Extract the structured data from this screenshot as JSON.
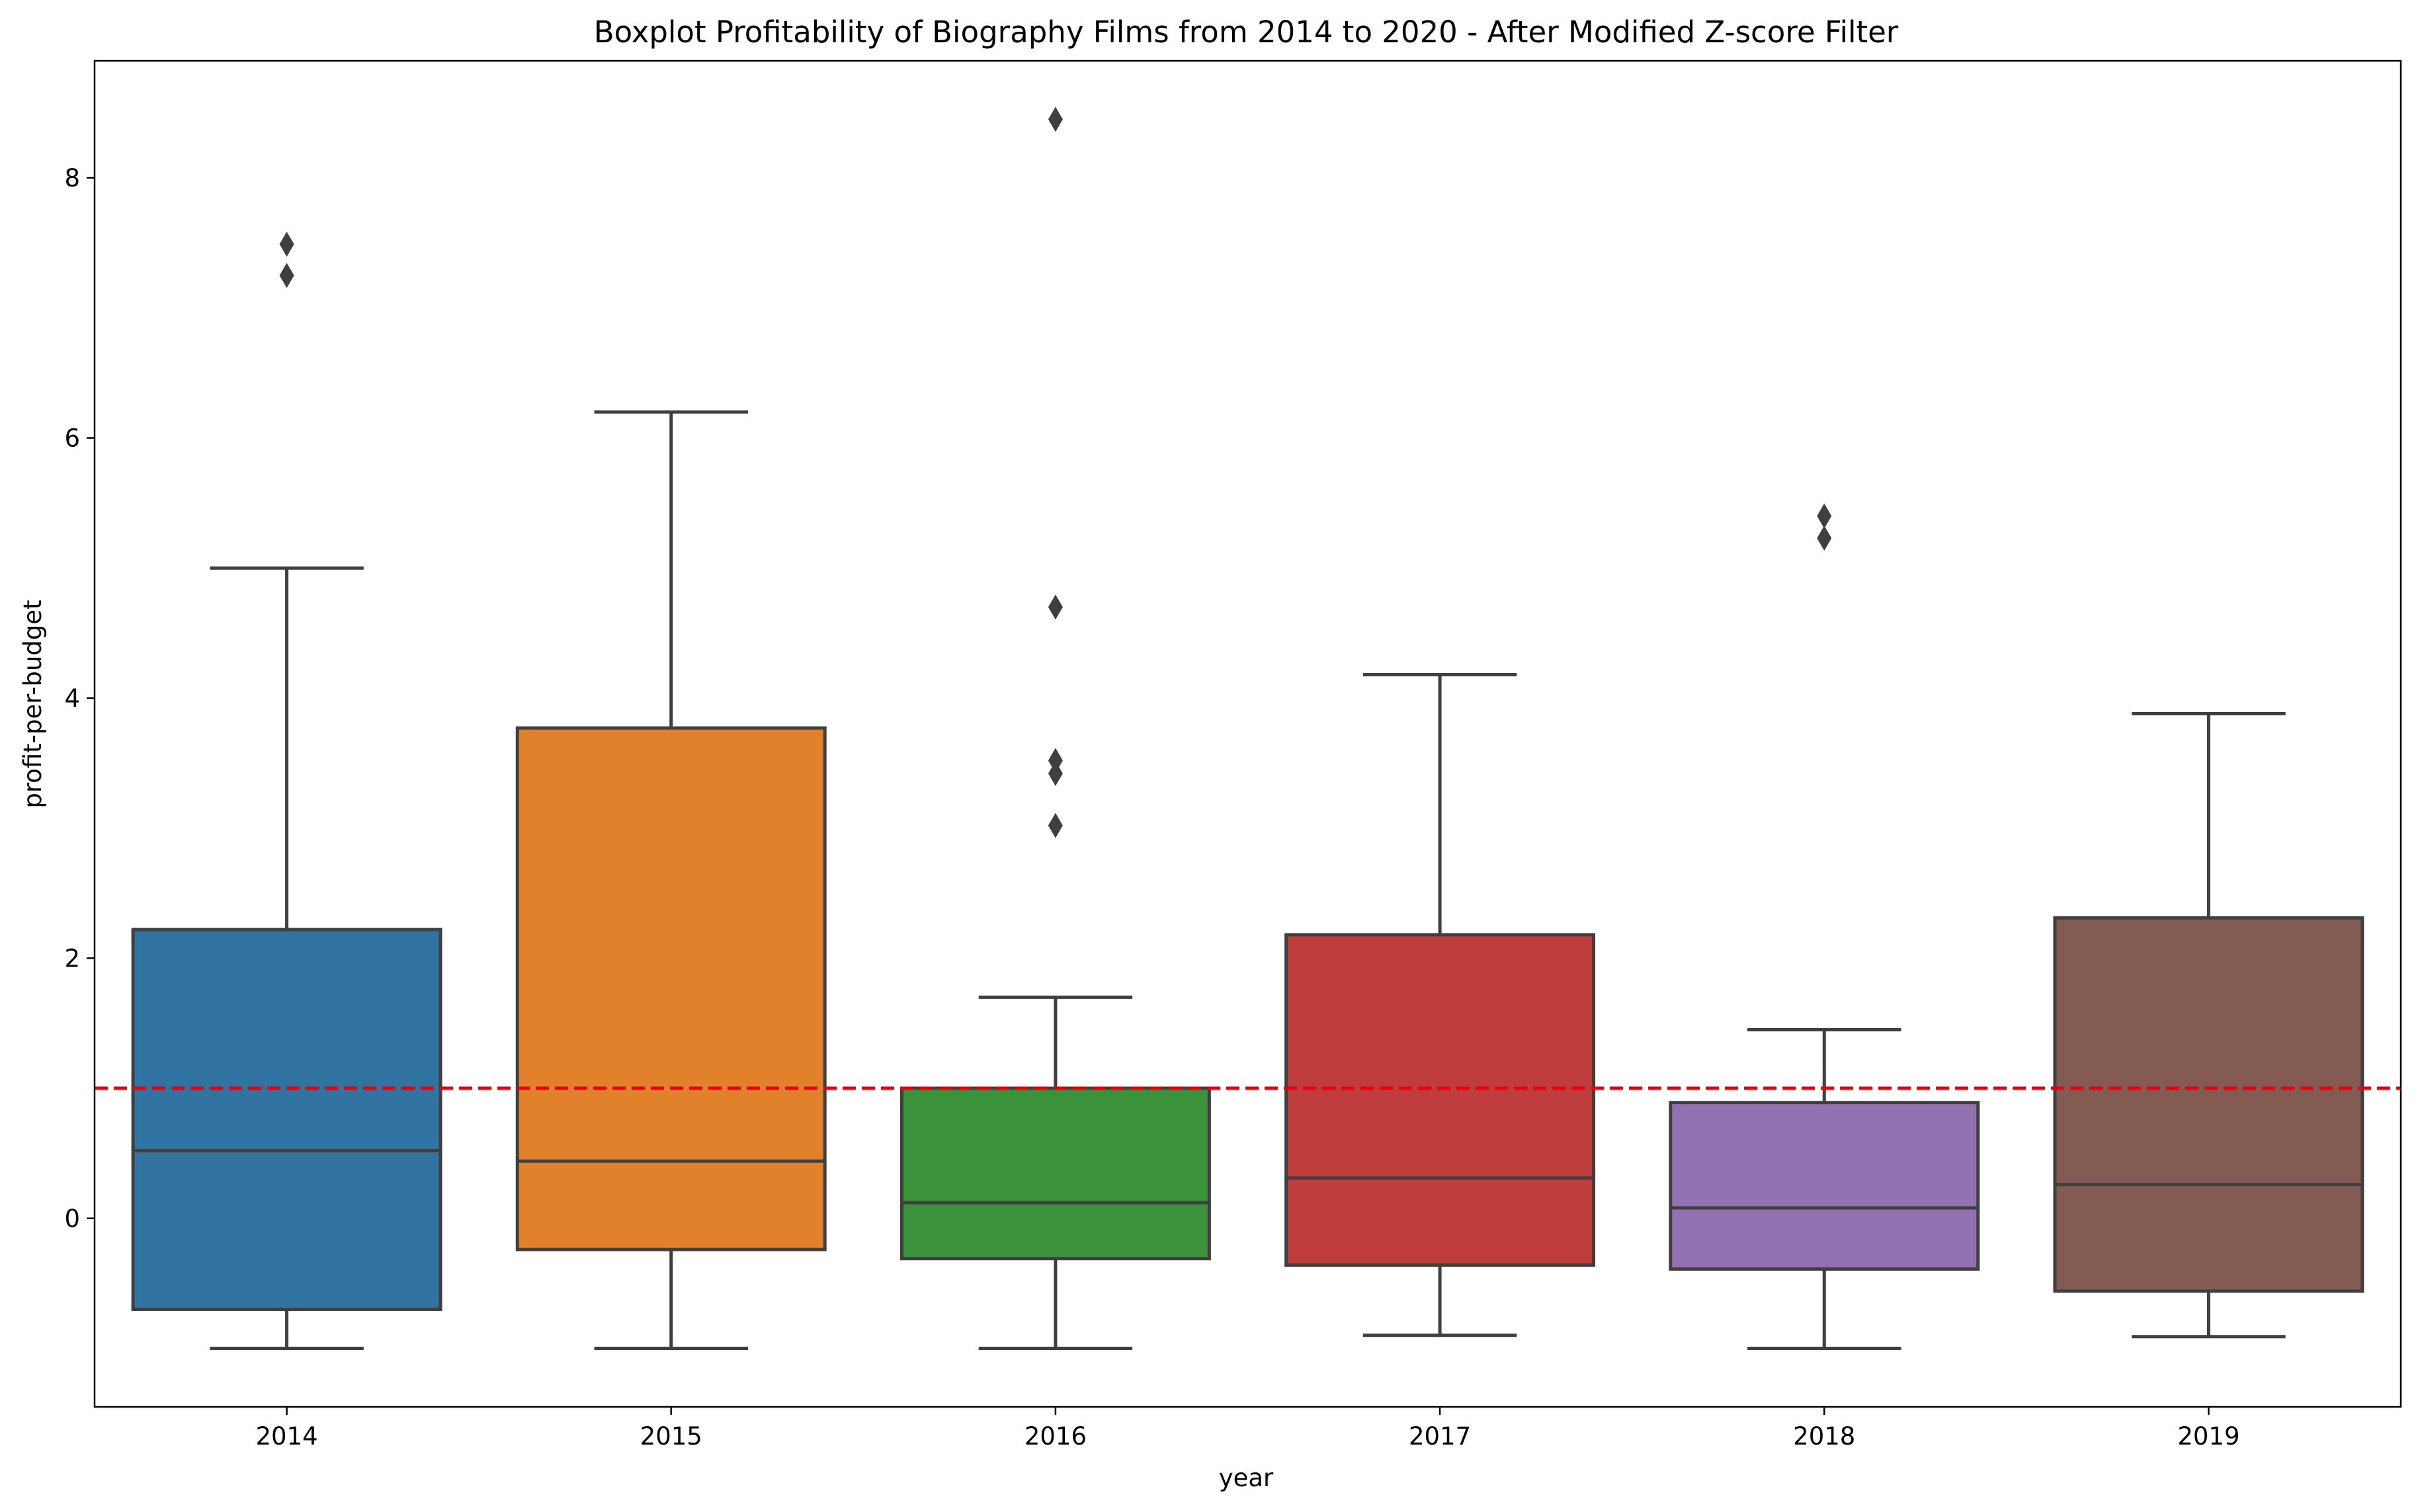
{
  "chart_data": {
    "type": "boxplot",
    "title": "Boxplot Profitability of Biography Films from 2014 to 2020 - After Modified Z-score Filter",
    "xlabel": "year",
    "ylabel": "profit-per-budget",
    "ylim": [
      -1.45,
      8.9
    ],
    "yticks": [
      0,
      2,
      4,
      6,
      8
    ],
    "grid": false,
    "reference_line": {
      "y": 1.0,
      "color": "#e8000b",
      "style": "dashed"
    },
    "categories": [
      "2014",
      "2015",
      "2016",
      "2017",
      "2018",
      "2019"
    ],
    "boxes": [
      {
        "category": "2014",
        "color": "#3274a1",
        "whisker_low": -1.0,
        "q1": -0.7,
        "median": 0.52,
        "q3": 2.22,
        "whisker_high": 5.0,
        "outliers": [
          7.25,
          7.49
        ]
      },
      {
        "category": "2015",
        "color": "#e1812c",
        "whisker_low": -1.0,
        "q1": -0.24,
        "median": 0.44,
        "q3": 3.77,
        "whisker_high": 6.2,
        "outliers": []
      },
      {
        "category": "2016",
        "color": "#3a923a",
        "whisker_low": -1.0,
        "q1": -0.31,
        "median": 0.12,
        "q3": 1.0,
        "whisker_high": 1.7,
        "outliers": [
          3.02,
          3.42,
          3.52,
          4.7,
          8.45
        ]
      },
      {
        "category": "2017",
        "color": "#c03d3e",
        "whisker_low": -0.9,
        "q1": -0.36,
        "median": 0.31,
        "q3": 2.18,
        "whisker_high": 4.18,
        "outliers": []
      },
      {
        "category": "2018",
        "color": "#9372b2",
        "whisker_low": -1.0,
        "q1": -0.39,
        "median": 0.08,
        "q3": 0.89,
        "whisker_high": 1.45,
        "outliers": [
          5.23,
          5.4
        ]
      },
      {
        "category": "2019",
        "color": "#845b53",
        "whisker_low": -0.91,
        "q1": -0.56,
        "median": 0.26,
        "q3": 2.31,
        "whisker_high": 3.88,
        "outliers": []
      }
    ]
  }
}
